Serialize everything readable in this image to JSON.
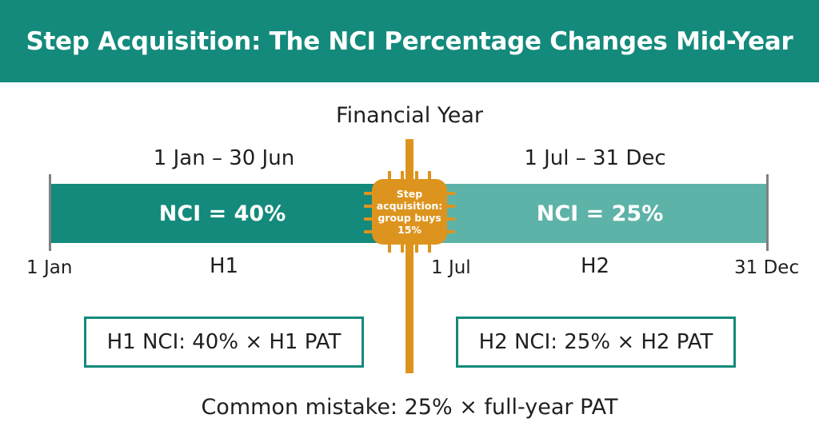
{
  "title": "Step Acquisition: The NCI Percentage Changes Mid-Year",
  "timeline": {
    "heading": "Financial Year",
    "periods": [
      {
        "range": "1 Jan – 30 Jun",
        "label": "NCI = 40%",
        "name": "H1",
        "color": "#138a7b"
      },
      {
        "range": "1 Jul – 31 Dec",
        "label": "NCI = 25%",
        "name": "H2",
        "color": "#5db3a7"
      }
    ],
    "axis_labels": {
      "start": "1 Jan",
      "mid": "1 Jul",
      "end": "31 Dec"
    },
    "event": {
      "text": "Step acquisition: group buys 15%",
      "icon": "chip-icon",
      "color": "#dd941e"
    }
  },
  "formulas": {
    "h1": "H1 NCI: 40% × H1 PAT",
    "h2": "H2 NCI: 25% × H2 PAT"
  },
  "note": "Common mistake: 25% × full-year PAT"
}
